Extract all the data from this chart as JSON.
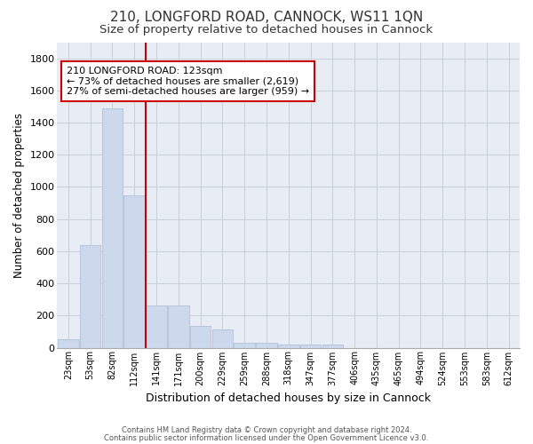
{
  "title1": "210, LONGFORD ROAD, CANNOCK, WS11 1QN",
  "title2": "Size of property relative to detached houses in Cannock",
  "xlabel": "Distribution of detached houses by size in Cannock",
  "ylabel": "Number of detached properties",
  "categories": [
    "23sqm",
    "53sqm",
    "82sqm",
    "112sqm",
    "141sqm",
    "171sqm",
    "200sqm",
    "229sqm",
    "259sqm",
    "288sqm",
    "318sqm",
    "347sqm",
    "377sqm",
    "406sqm",
    "435sqm",
    "465sqm",
    "494sqm",
    "524sqm",
    "553sqm",
    "583sqm",
    "612sqm"
  ],
  "values": [
    50,
    640,
    1490,
    950,
    265,
    265,
    135,
    115,
    30,
    30,
    20,
    20,
    20,
    0,
    0,
    0,
    0,
    0,
    0,
    0,
    0
  ],
  "bar_color": "#ccd9ed",
  "bar_edge_color": "#aabbd4",
  "grid_color": "#c8d0dc",
  "background_color": "#e8edf5",
  "vline_x": 3.5,
  "vline_color": "#cc0000",
  "annotation_text": "210 LONGFORD ROAD: 123sqm\n← 73% of detached houses are smaller (2,619)\n27% of semi-detached houses are larger (959) →",
  "annotation_box_color": "#ffffff",
  "annotation_box_edge": "#cc0000",
  "ylim": [
    0,
    1900
  ],
  "yticks": [
    0,
    200,
    400,
    600,
    800,
    1000,
    1200,
    1400,
    1600,
    1800
  ],
  "footer1": "Contains HM Land Registry data © Crown copyright and database right 2024.",
  "footer2": "Contains public sector information licensed under the Open Government Licence v3.0.",
  "title1_fontsize": 11,
  "title2_fontsize": 9.5
}
